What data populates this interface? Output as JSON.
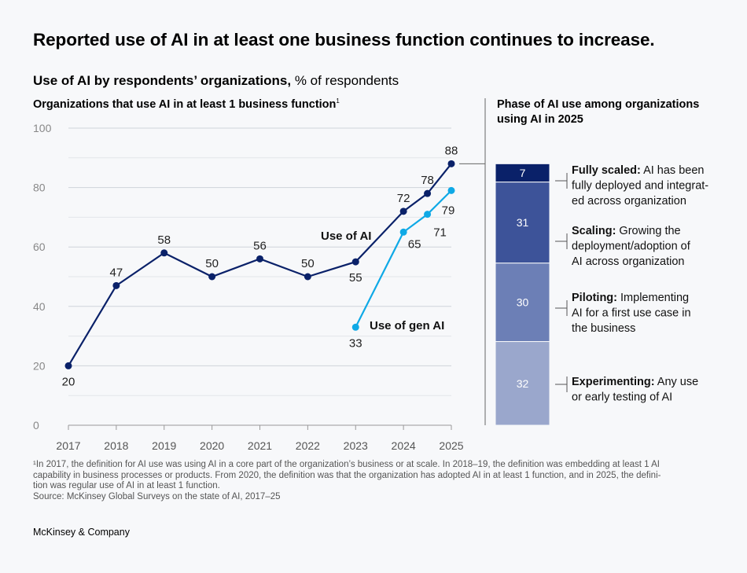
{
  "title": "Reported use of AI in at least one business function continues to increase.",
  "subtitle_bold": "Use of AI by respondents’ organizations,",
  "subtitle_rest": " % of respondents",
  "left_heading": "Organizations that use AI in at least 1 business function",
  "left_heading_sup": "1",
  "right_heading": "Phase of AI use among organizations using AI in 2025",
  "footnote_lines": [
    "¹In 2017, the definition for AI use was using AI in a core part of the organization’s business or at scale. In 2018–19, the definition was embedding at least 1 AI",
    " capability in business processes or products. From 2020, the definition was that the organization has adopted AI in at least 1 function, and in 2025, the defini-",
    " tion was regular use of AI in at least 1 function."
  ],
  "source": " Source: McKinsey Global Surveys on the state of AI, 2017–25",
  "brand": "McKinsey & Company",
  "colors": {
    "use_of_ai": "#0a2169",
    "use_of_gen_ai": "#0fa9e6",
    "grid": "#cfd3da",
    "stack": [
      "#0a2169",
      "#3d5399",
      "#6c7fb6",
      "#9aa7cc"
    ]
  },
  "chart_data": [
    {
      "type": "line",
      "x": [
        2017,
        2018,
        2019,
        2020,
        2021,
        2022,
        2023,
        2024,
        2024.5,
        2025
      ],
      "x_tick_labels": [
        "2017",
        "2018",
        "2019",
        "2020",
        "2021",
        "2022",
        "2023",
        "2024",
        "2025"
      ],
      "ylim": [
        0,
        100
      ],
      "y_ticks": [
        0,
        20,
        40,
        60,
        80,
        100
      ],
      "grid": true,
      "series": [
        {
          "name": "Use of AI",
          "x": [
            2017,
            2018,
            2019,
            2020,
            2021,
            2022,
            2023,
            2024,
            2024.5,
            2025
          ],
          "values": [
            20,
            47,
            58,
            50,
            56,
            50,
            55,
            72,
            78,
            88
          ]
        },
        {
          "name": "Use of gen AI",
          "x": [
            2023,
            2024,
            2024.5,
            2025
          ],
          "values": [
            33,
            65,
            71,
            79
          ]
        }
      ]
    },
    {
      "type": "bar",
      "stacked": true,
      "total": 100,
      "segments": [
        {
          "value": 7,
          "label_bold": "Fully scaled:",
          "label_lines": [
            " AI has been",
            "fully deployed and integrat-",
            "ed across organization"
          ]
        },
        {
          "value": 31,
          "label_bold": "Scaling:",
          "label_lines": [
            " Growing the",
            "deployment/adoption of",
            "AI across organization"
          ]
        },
        {
          "value": 30,
          "label_bold": "Piloting:",
          "label_lines": [
            " Implementing",
            "AI for a first use case in",
            "the business"
          ]
        },
        {
          "value": 32,
          "label_bold": "Experimenting:",
          "label_lines": [
            " Any use",
            "or early testing of AI"
          ]
        }
      ]
    }
  ]
}
